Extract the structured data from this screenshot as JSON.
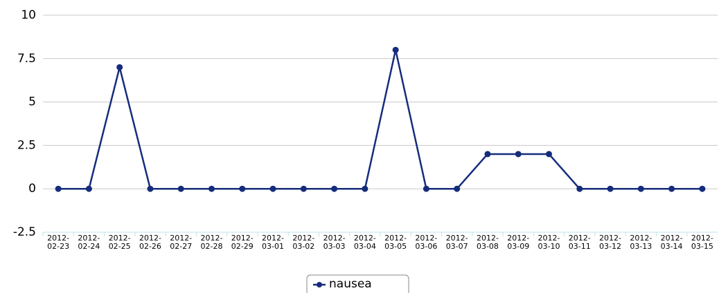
{
  "chart_data": {
    "type": "line",
    "categories": [
      "2012-02-23",
      "2012-02-24",
      "2012-02-25",
      "2012-02-26",
      "2012-02-27",
      "2012-02-28",
      "2012-02-29",
      "2012-03-01",
      "2012-03-02",
      "2012-03-03",
      "2012-03-04",
      "2012-03-05",
      "2012-03-06",
      "2012-03-07",
      "2012-03-08",
      "2012-03-09",
      "2012-03-10",
      "2012-03-11",
      "2012-03-12",
      "2012-03-13",
      "2012-03-14",
      "2012-03-15"
    ],
    "series": [
      {
        "name": "nausea",
        "color": "#152c7c",
        "values": [
          0,
          0,
          7,
          0,
          0,
          0,
          0,
          0,
          0,
          0,
          0,
          8,
          0,
          0,
          2,
          2,
          2,
          0,
          0,
          0,
          0,
          0
        ]
      }
    ],
    "ylim": [
      -2.5,
      10
    ],
    "yticks": [
      -2.5,
      0,
      2.5,
      5,
      7.5,
      10
    ],
    "grid": true,
    "legend": "bottom"
  }
}
